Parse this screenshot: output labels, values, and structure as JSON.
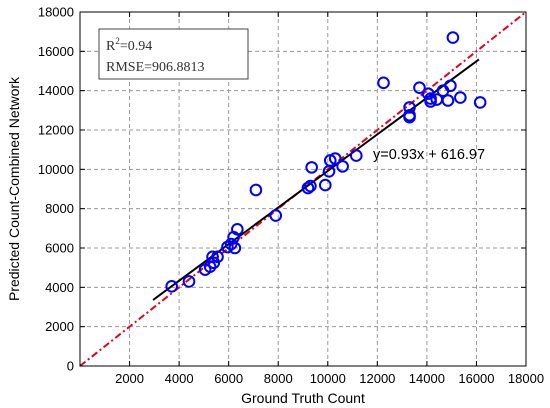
{
  "chart_data": {
    "type": "scatter",
    "xlabel": "Ground Truth Count",
    "ylabel": "Predicted Count-Combined Network",
    "xlim": [
      0,
      18000
    ],
    "ylim": [
      0,
      18000
    ],
    "xticks": [
      "2000",
      "4000",
      "6000",
      "8000",
      "10000",
      "12000",
      "14000",
      "16000",
      "18000"
    ],
    "yticks": [
      "0",
      "2000",
      "4000",
      "6000",
      "8000",
      "10000",
      "12000",
      "14000",
      "16000",
      "18000"
    ],
    "grid": "dashed",
    "stats": {
      "r2_prefix": "R",
      "r2_sup": "2",
      "r2_value": "=0.94",
      "rmse": "RMSE=906.8813"
    },
    "fit_equation": "y=0.93x + 616.97",
    "fit_line": {
      "slope": 0.93,
      "intercept": 616.97,
      "x_range": [
        2950,
        16100
      ],
      "color": "#000000"
    },
    "identity_line": {
      "slope": 1,
      "intercept": 0,
      "color": "#e8001c",
      "style": "dash-dot"
    },
    "marker_color": "#0000ff",
    "points": [
      [
        3700,
        4050
      ],
      [
        4400,
        4300
      ],
      [
        5050,
        4900
      ],
      [
        5250,
        5050
      ],
      [
        5400,
        5250
      ],
      [
        5350,
        5550
      ],
      [
        5550,
        5550
      ],
      [
        5950,
        6050
      ],
      [
        6100,
        6200
      ],
      [
        6250,
        6000
      ],
      [
        6200,
        6550
      ],
      [
        6350,
        6950
      ],
      [
        7100,
        8950
      ],
      [
        7900,
        7650
      ],
      [
        9200,
        9050
      ],
      [
        9300,
        9150
      ],
      [
        9350,
        10100
      ],
      [
        9900,
        9200
      ],
      [
        10050,
        9900
      ],
      [
        10100,
        10450
      ],
      [
        10300,
        10550
      ],
      [
        10600,
        10150
      ],
      [
        11150,
        10700
      ],
      [
        12250,
        14400
      ],
      [
        13300,
        12650
      ],
      [
        13300,
        12750
      ],
      [
        13300,
        13150
      ],
      [
        13700,
        14150
      ],
      [
        14050,
        13850
      ],
      [
        14150,
        13450
      ],
      [
        14150,
        13600
      ],
      [
        14400,
        13550
      ],
      [
        14650,
        14000
      ],
      [
        14850,
        13500
      ],
      [
        14950,
        14250
      ],
      [
        15050,
        16700
      ],
      [
        15350,
        13650
      ],
      [
        16150,
        13400
      ]
    ]
  }
}
